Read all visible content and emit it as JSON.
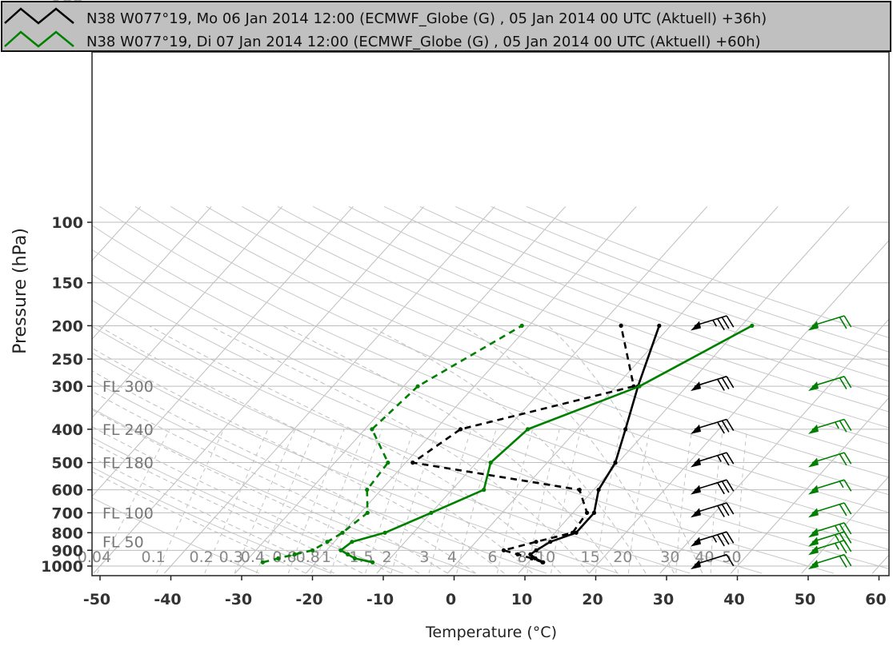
{
  "chart_data": {
    "type": "line",
    "chart_kind": "skew-T log-p sounding",
    "xlabel": "Temperature (°C)",
    "ylabel": "Pressure (hPa)",
    "xlim": [
      -50,
      60
    ],
    "ylim": [
      1000,
      100
    ],
    "y_scale": "log",
    "x_ticks": [
      -50,
      -40,
      -30,
      -20,
      -10,
      0,
      10,
      20,
      30,
      40,
      50,
      60
    ],
    "y_ticks": [
      1000,
      900,
      800,
      700,
      600,
      500,
      400,
      300,
      250,
      200,
      150,
      100
    ],
    "flight_levels": [
      {
        "label": "FL 300",
        "p": 300
      },
      {
        "label": "FL 240",
        "p": 400
      },
      {
        "label": "FL 180",
        "p": 500
      },
      {
        "label": "FL 100",
        "p": 700
      },
      {
        "label": "FL 50",
        "p": 850
      }
    ],
    "mixing_ratio_labels": [
      "0.04",
      "0.1",
      "0.2",
      "0.3",
      "0.4",
      "0.6",
      "0.8",
      "1",
      "1.5",
      "2",
      "3",
      "4",
      "6",
      "8",
      "10",
      "15",
      "20",
      "30",
      "40",
      "50"
    ],
    "legend": [
      {
        "label": "N38 W077°19, Mo 06 Jan 2014 12:00 (ECMWF_Globe (G) , 05 Jan 2014 00 UTC (Aktuell) +36h)",
        "color": "#000000"
      },
      {
        "label": "N38 W077°19, Di 07 Jan 2014 12:00 (ECMWF_Globe (G) , 05 Jan 2014 00 UTC (Aktuell) +60h)",
        "color": "#008000"
      }
    ],
    "legend_placement": "top",
    "grid": true,
    "series": [
      {
        "name": "N38 W077°19, Mo 06 Jan 2014 12:00 (ECMWF_Globe (G) , 05 Jan 2014 00 UTC (Aktuell) +36h)",
        "color": "#000000",
        "temperature": [
          [
            975,
            12.1
          ],
          [
            950,
            10.5
          ],
          [
            925,
            9.3
          ],
          [
            900,
            9.6
          ],
          [
            850,
            10.5
          ],
          [
            800,
            13
          ],
          [
            700,
            13
          ],
          [
            600,
            10.7
          ],
          [
            500,
            9.6
          ],
          [
            400,
            6.8
          ],
          [
            300,
            3.1
          ],
          [
            200,
            -1.6
          ]
        ],
        "dewpoint": [
          [
            975,
            12
          ],
          [
            950,
            10
          ],
          [
            925,
            7.5
          ],
          [
            900,
            5
          ],
          [
            850,
            8.5
          ],
          [
            800,
            12.5
          ],
          [
            700,
            12
          ],
          [
            600,
            8
          ],
          [
            500,
            -19
          ],
          [
            400,
            -16.5
          ],
          [
            300,
            2.5
          ],
          [
            200,
            -7
          ]
        ],
        "wind": [
          [
            990,
            10
          ],
          [
            850,
            35
          ],
          [
            700,
            30
          ],
          [
            600,
            30
          ],
          [
            500,
            25
          ],
          [
            400,
            30
          ],
          [
            300,
            30
          ],
          [
            200,
            35
          ]
        ]
      },
      {
        "name": "N38 W077°19, Di 07 Jan 2014 12:00 (ECMWF_Globe (G) , 05 Jan 2014 00 UTC (Aktuell) +60h)",
        "color": "#008000",
        "temperature": [
          [
            975,
            -12
          ],
          [
            950,
            -15
          ],
          [
            925,
            -16.5
          ],
          [
            900,
            -18
          ],
          [
            850,
            -17.5
          ],
          [
            800,
            -14
          ],
          [
            700,
            -10
          ],
          [
            600,
            -5.5
          ],
          [
            500,
            -8
          ],
          [
            400,
            -7
          ],
          [
            300,
            3.3
          ],
          [
            200,
            11.5
          ]
        ],
        "dewpoint": [
          [
            975,
            -27.5
          ],
          [
            950,
            -25.8
          ],
          [
            925,
            -24
          ],
          [
            900,
            -22
          ],
          [
            850,
            -21
          ],
          [
            800,
            -20
          ],
          [
            700,
            -19
          ],
          [
            600,
            -22
          ],
          [
            500,
            -22.5
          ],
          [
            400,
            -29
          ],
          [
            300,
            -28
          ],
          [
            200,
            -21
          ]
        ],
        "wind": [
          [
            990,
            20
          ],
          [
            900,
            25
          ],
          [
            850,
            25
          ],
          [
            800,
            25
          ],
          [
            700,
            20
          ],
          [
            600,
            15
          ],
          [
            500,
            20
          ],
          [
            400,
            25
          ],
          [
            300,
            20
          ],
          [
            200,
            20
          ]
        ]
      }
    ]
  }
}
